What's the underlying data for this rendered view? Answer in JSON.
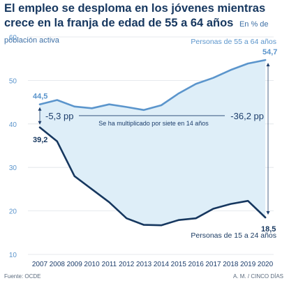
{
  "header": {
    "title": "El empleo se desploma en los jóvenes mientras crece en la franja de edad de 55 a 64 años",
    "subtitle": "En % de población activa"
  },
  "footer": {
    "source": "Fuente: OCDE",
    "credit": "A. M. / CINCO DÍAS"
  },
  "colors": {
    "older": "#5b95cc",
    "young": "#16375f",
    "fill": "#deeef8",
    "grid": "#dfe3e8",
    "axis_label": "#5b95cc",
    "text": "#1c3d6b"
  },
  "chart_data": {
    "type": "area",
    "categories": [
      "2007",
      "2008",
      "2009",
      "2010",
      "2011",
      "2012",
      "2013",
      "2014",
      "2015",
      "2016",
      "2017",
      "2018",
      "2019",
      "2020"
    ],
    "series": [
      {
        "name": "Personas de 55 a 64 años",
        "values": [
          44.5,
          45.5,
          44.0,
          43.6,
          44.5,
          43.9,
          43.2,
          44.3,
          47.0,
          49.2,
          50.6,
          52.4,
          53.9,
          54.7
        ]
      },
      {
        "name": "Personas de 15 a 24 años",
        "values": [
          39.2,
          36.0,
          28.0,
          25.0,
          22.0,
          18.3,
          16.8,
          16.7,
          17.9,
          18.3,
          20.5,
          21.6,
          22.3,
          18.5
        ]
      }
    ],
    "ylim": [
      10,
      60
    ],
    "yticks": [
      10,
      20,
      30,
      40,
      50,
      60
    ],
    "grid": true,
    "annotations": {
      "older_start_label": "44,5",
      "older_end_label": "54,7",
      "young_start_label": "39,2",
      "young_end_label": "18,5",
      "gap_start_label": "-5,3 pp",
      "gap_end_label": "-36,2 pp",
      "middle_note": "Se ha multiplicado por siete en 14 años"
    }
  }
}
